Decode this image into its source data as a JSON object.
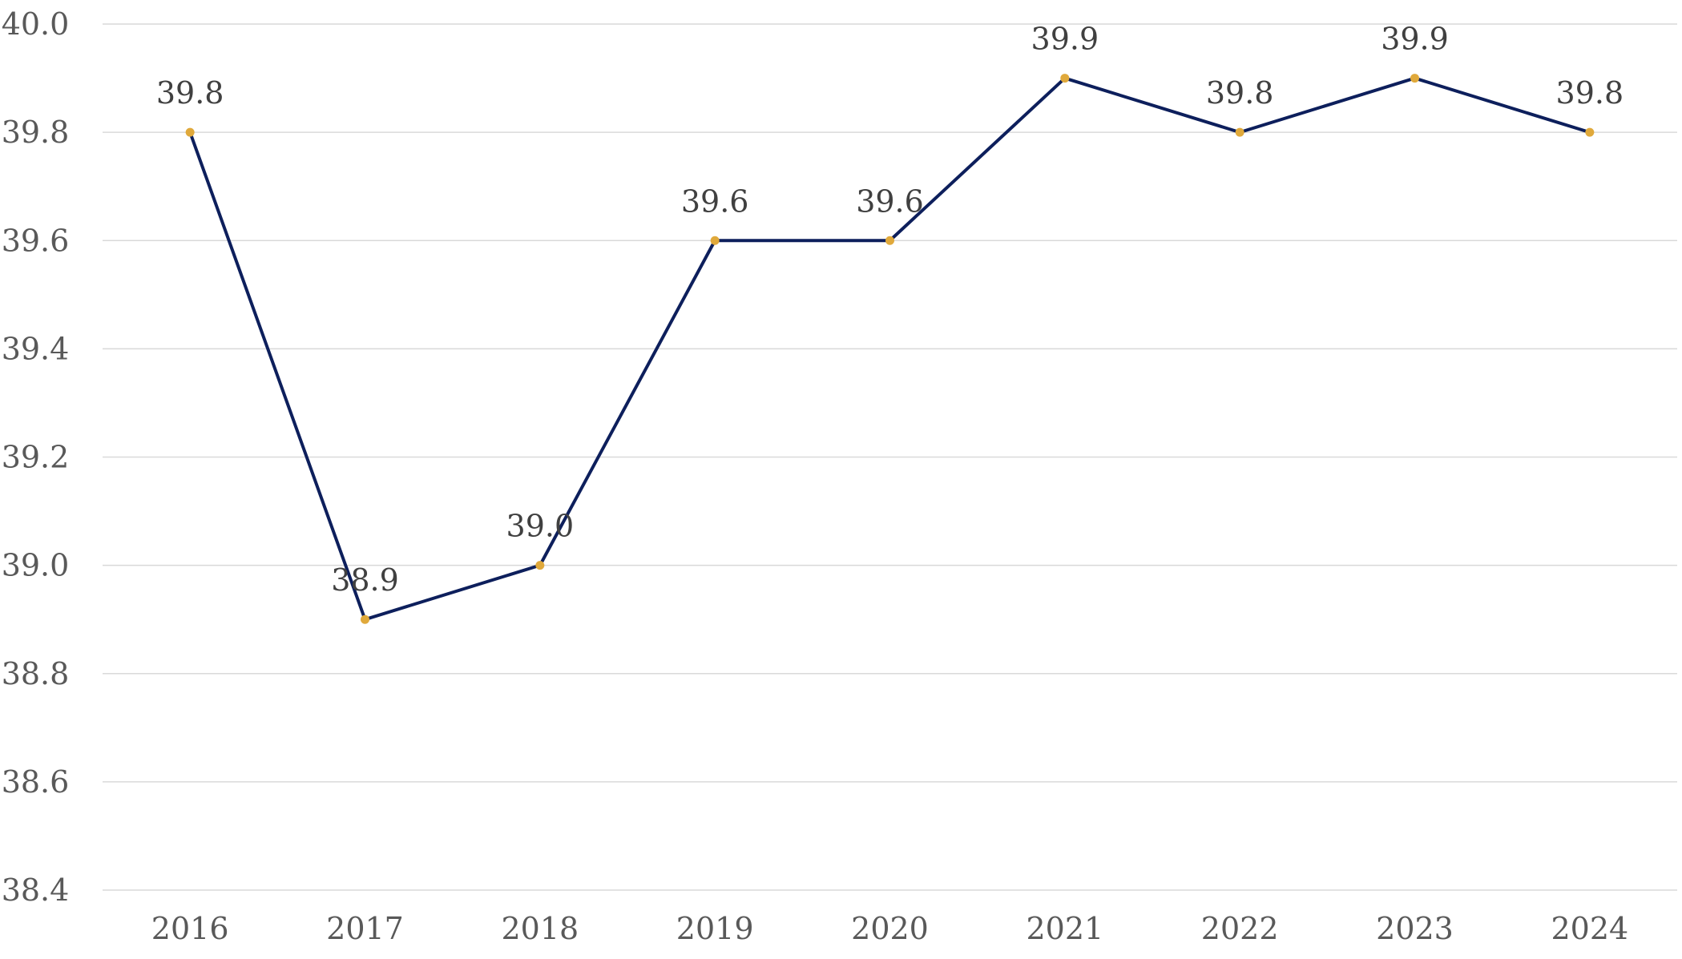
{
  "chart_data": {
    "type": "line",
    "title": "",
    "xlabel": "",
    "ylabel": "",
    "categories": [
      "2016",
      "2017",
      "2018",
      "2019",
      "2020",
      "2021",
      "2022",
      "2023",
      "2024"
    ],
    "series": [
      {
        "values": [
          39.8,
          38.9,
          39.0,
          39.6,
          39.6,
          39.9,
          39.8,
          39.9,
          39.8
        ],
        "data_labels": [
          "39.8",
          "38.9",
          "39.0",
          "39.6",
          "39.6",
          "39.9",
          "39.8",
          "39.9",
          "39.8"
        ],
        "line_color": "#0d1f5c",
        "marker_color": "#e0a93b"
      }
    ],
    "ylim": [
      38.4,
      40.0
    ],
    "yticks": [
      38.4,
      38.6,
      38.8,
      39.0,
      39.2,
      39.4,
      39.6,
      39.8,
      40.0
    ],
    "ytick_labels": [
      "38.4",
      "38.6",
      "38.8",
      "39.0",
      "39.2",
      "39.4",
      "39.6",
      "39.8",
      "40.0"
    ],
    "grid": "horizontal",
    "legend": "none"
  }
}
